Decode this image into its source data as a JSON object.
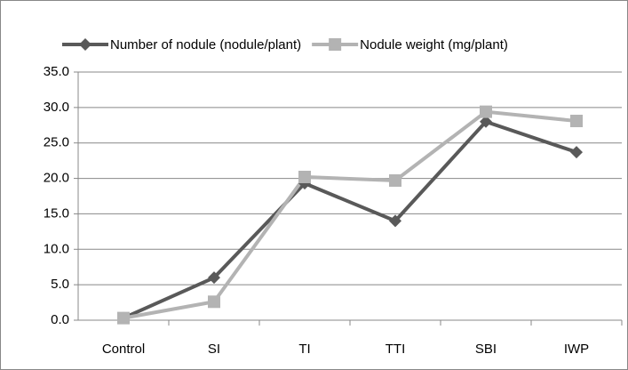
{
  "chart_data": {
    "type": "line",
    "categories": [
      "Control",
      "SI",
      "TI",
      "TTI",
      "SBI",
      "IWP"
    ],
    "series": [
      {
        "name": "Number of nodule (nodule/plant)",
        "color": "#595959",
        "marker": "diamond",
        "values": [
          0.3,
          6.0,
          19.3,
          14.0,
          28.0,
          23.7
        ]
      },
      {
        "name": "Nodule weight (mg/plant)",
        "color": "#b3b3b3",
        "marker": "square",
        "values": [
          0.3,
          2.6,
          20.2,
          19.7,
          29.4,
          28.1
        ]
      }
    ],
    "ylim": [
      0,
      35
    ],
    "yticks": [
      {
        "value": 0,
        "label": "0.0"
      },
      {
        "value": 5,
        "label": "5.0"
      },
      {
        "value": 10,
        "label": "10.0"
      },
      {
        "value": 15,
        "label": "15.0"
      },
      {
        "value": 20,
        "label": "20.0"
      },
      {
        "value": 25,
        "label": "25.0"
      },
      {
        "value": 30,
        "label": "30.0"
      },
      {
        "value": 35,
        "label": "35.0"
      }
    ],
    "grid": true,
    "legend": "top"
  }
}
